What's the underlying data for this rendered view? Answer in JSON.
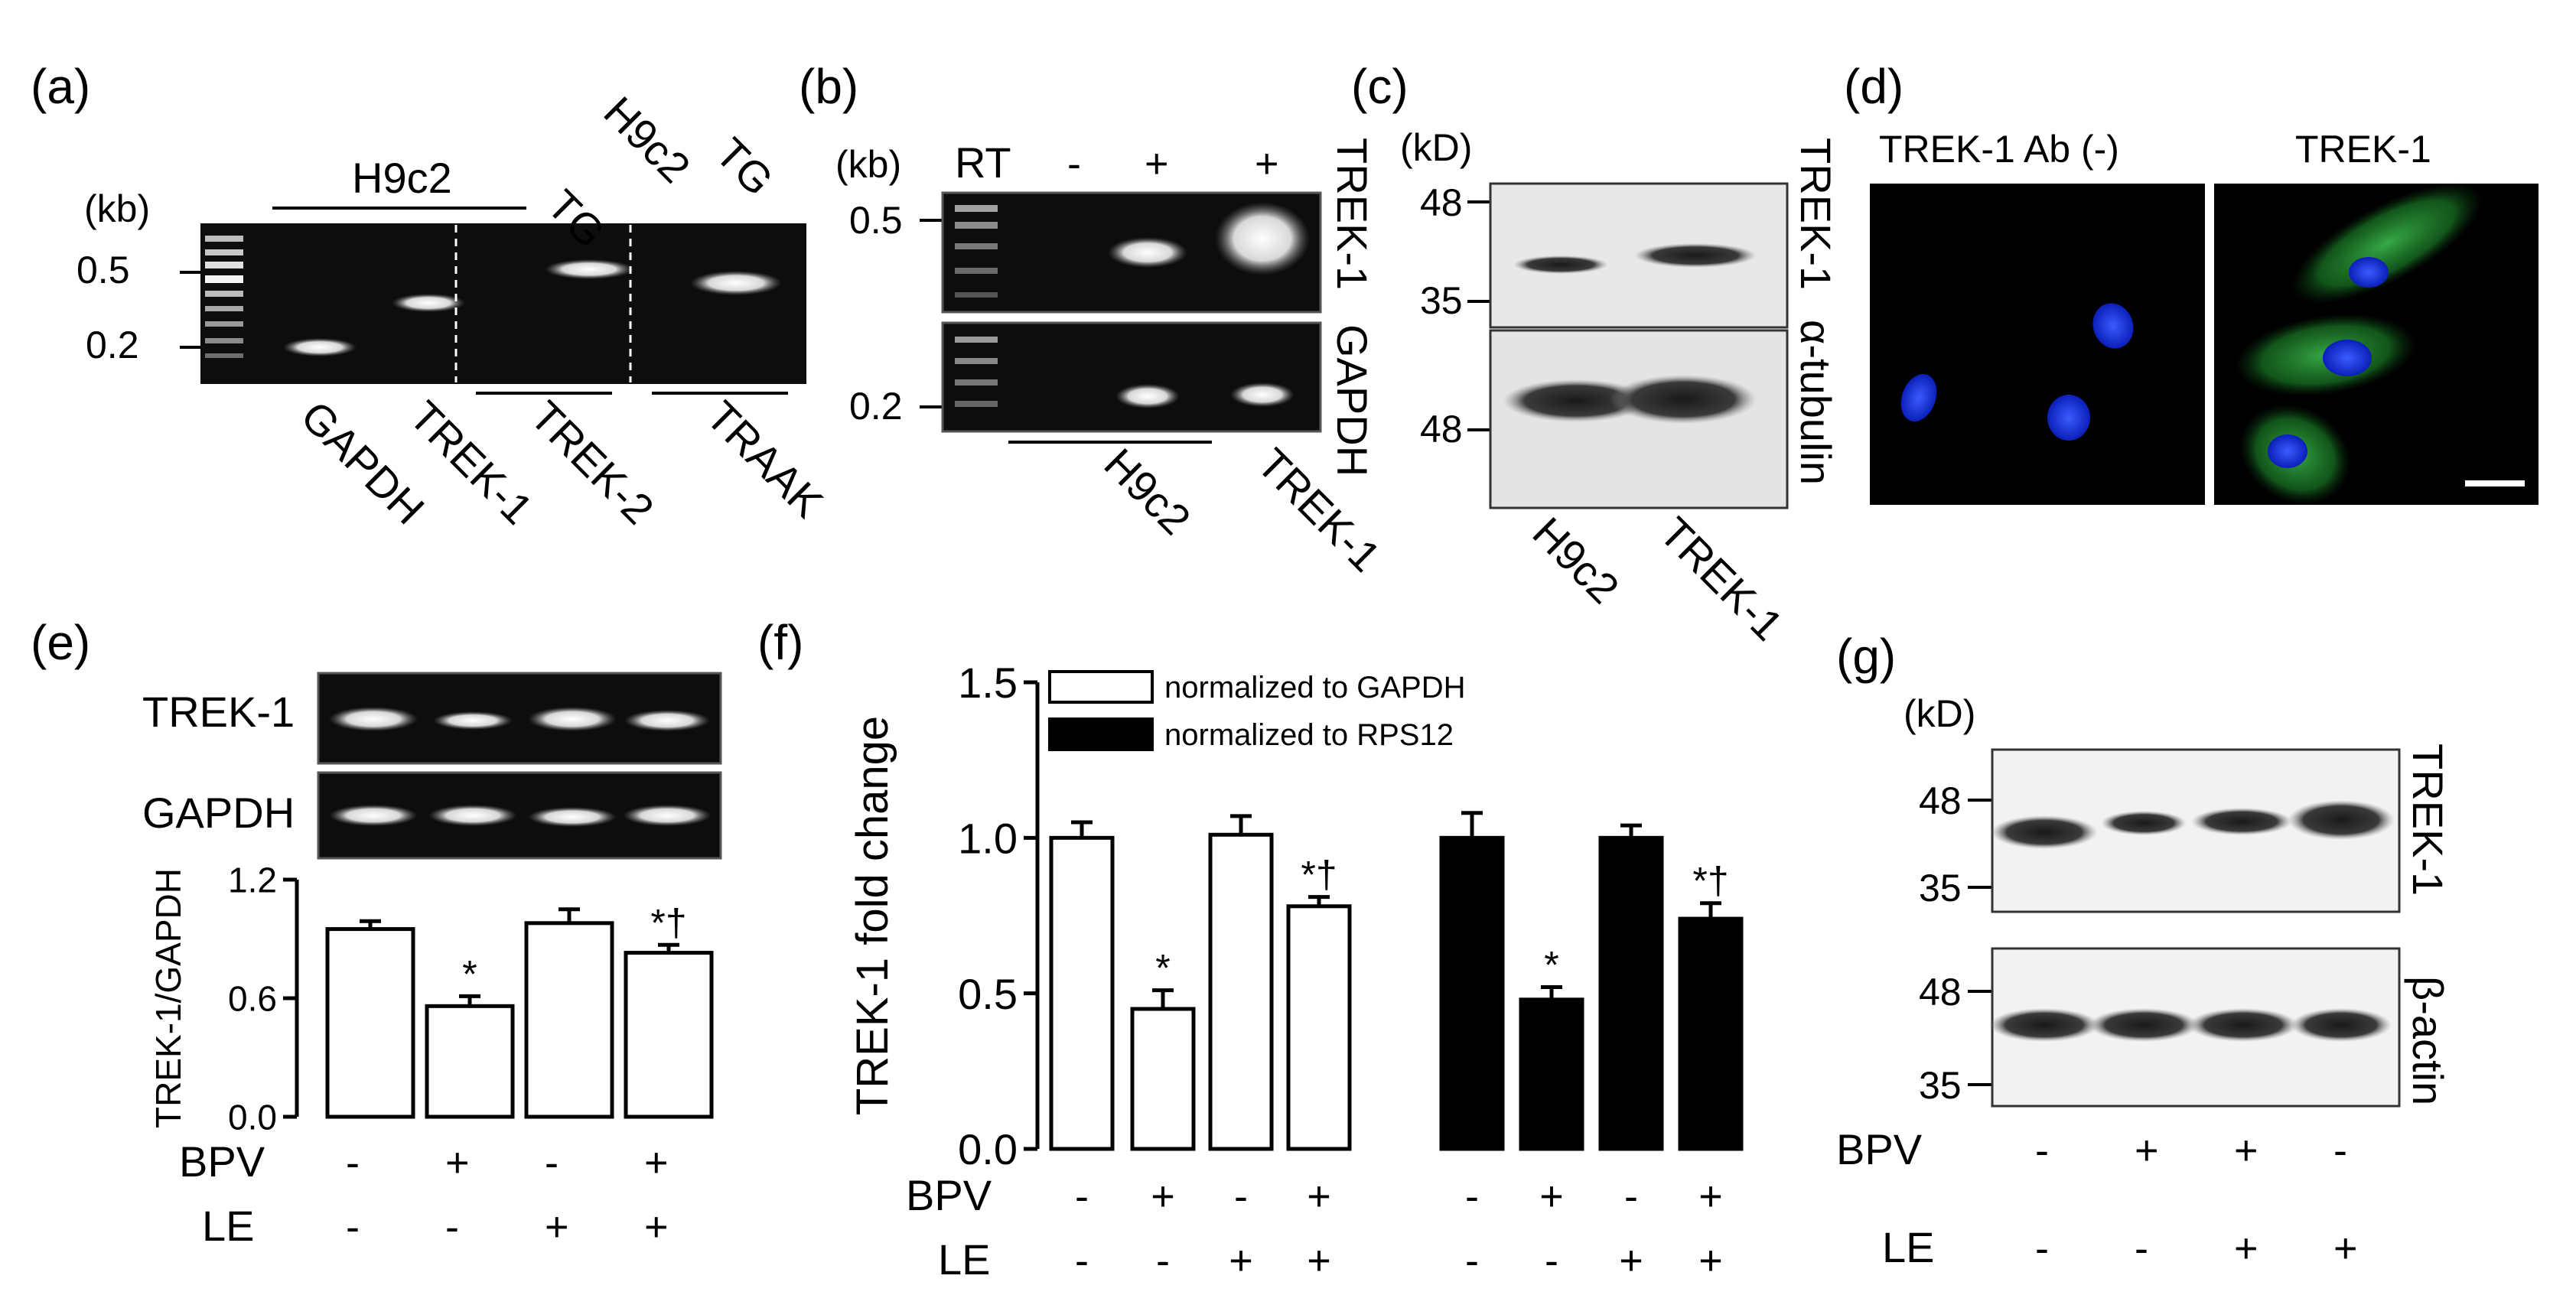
{
  "panels": {
    "a": {
      "label": "(a)",
      "unit": "(kb)",
      "markers": [
        "0.5",
        "0.2"
      ],
      "top_labels": [
        "H9c2",
        "TG",
        "H9c2",
        "TG"
      ],
      "bottom_labels": [
        "GAPDH",
        "TREK-1",
        "TREK-2",
        "TRAAK"
      ]
    },
    "b": {
      "label": "(b)",
      "unit": "(kb)",
      "rt_label": "RT",
      "rt_signs": [
        "-",
        "+",
        "+"
      ],
      "markers": [
        "0.5",
        "0.2"
      ],
      "right_labels": [
        "TREK-1",
        "GAPDH"
      ],
      "bottom_labels": [
        "H9c2",
        "TREK-1"
      ]
    },
    "c": {
      "label": "(c)",
      "unit": "(kD)",
      "markers_top": [
        "48",
        "35"
      ],
      "markers_bottom": [
        "48"
      ],
      "right_labels": [
        "TREK-1",
        "α-tubulin"
      ],
      "bottom_labels": [
        "H9c2",
        "TREK-1"
      ]
    },
    "d": {
      "label": "(d)",
      "titles": [
        "TREK-1 Ab (-)",
        "TREK-1"
      ]
    },
    "e": {
      "label": "(e)",
      "gel_labels": [
        "TREK-1",
        "GAPDH"
      ],
      "row_labels": [
        "BPV",
        "LE"
      ],
      "bpv": [
        "-",
        "+",
        "-",
        "+"
      ],
      "le": [
        "-",
        "-",
        "+",
        "+"
      ]
    },
    "f": {
      "label": "(f)",
      "row_labels": [
        "BPV",
        "LE"
      ],
      "bpv": [
        "-",
        "+",
        "-",
        "+",
        "-",
        "+",
        "-",
        "+"
      ],
      "le": [
        "-",
        "-",
        "+",
        "+",
        "-",
        "-",
        "+",
        "+"
      ]
    },
    "g": {
      "label": "(g)",
      "unit": "(kD)",
      "markers_top": [
        "48",
        "35"
      ],
      "markers_bottom": [
        "48",
        "35"
      ],
      "right_labels": [
        "TREK-1",
        "β-actin"
      ],
      "row_labels": [
        "BPV",
        "LE"
      ],
      "bpv": [
        "-",
        "+",
        "+",
        "-"
      ],
      "le": [
        "-",
        "-",
        "+",
        "+"
      ]
    }
  },
  "chart_data": [
    {
      "type": "bar",
      "panel": "e",
      "ylabel": "TREK-1/GAPDH",
      "ylim": [
        0,
        1.2
      ],
      "yticks": [
        "0.0",
        "0.6",
        "1.2"
      ],
      "series": [
        {
          "values": [
            0.95,
            0.56,
            0.98,
            0.83
          ],
          "errors": [
            0.04,
            0.05,
            0.07,
            0.04
          ],
          "fill": "#ffffff"
        }
      ],
      "annotations": [
        "",
        "*",
        "",
        "*†"
      ]
    },
    {
      "type": "bar",
      "panel": "f",
      "ylabel": "TREK-1 fold change",
      "ylim": [
        0,
        1.5
      ],
      "yticks": [
        "0.0",
        "0.5",
        "1.0",
        "1.5"
      ],
      "series": [
        {
          "name": "normalized to GAPDH",
          "fill": "#ffffff",
          "values": [
            1.0,
            0.45,
            1.01,
            0.78
          ],
          "errors": [
            0.05,
            0.06,
            0.06,
            0.03
          ],
          "annotations": [
            "",
            "*",
            "",
            "*†"
          ]
        },
        {
          "name": "normalized to RPS12",
          "fill": "#000000",
          "values": [
            1.0,
            0.48,
            1.0,
            0.74
          ],
          "errors": [
            0.08,
            0.04,
            0.04,
            0.05
          ],
          "annotations": [
            "",
            "*",
            "",
            "*†"
          ]
        }
      ]
    }
  ]
}
